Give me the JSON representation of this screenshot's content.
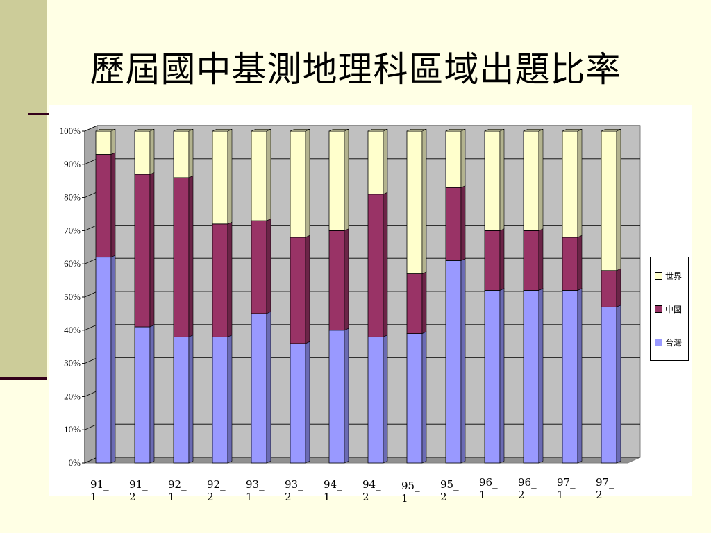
{
  "slide": {
    "title": "歷屆國中基測地理科區域出題比率"
  },
  "colors": {
    "background": "#FFFFE5",
    "accent_bar": "#CCCC99",
    "accent_line": "#33001A",
    "plot_area": "#C0C0C0"
  },
  "chart_data": {
    "type": "bar",
    "stacked": true,
    "normalized_percent": true,
    "three_d": true,
    "categories": [
      "91_1",
      "91_2",
      "92_1",
      "92_2",
      "93_1",
      "93_2",
      "94_1",
      "94_2",
      "95_1",
      "95_2",
      "96_1",
      "96_2",
      "97_1",
      "97_2"
    ],
    "series": [
      {
        "name": "台灣",
        "color": "#9999FF",
        "values": [
          62,
          41,
          38,
          38,
          45,
          36,
          40,
          38,
          39,
          61,
          52,
          52,
          52,
          47
        ]
      },
      {
        "name": "中國",
        "color": "#993366",
        "values": [
          31,
          46,
          48,
          34,
          28,
          32,
          30,
          43,
          18,
          22,
          18,
          18,
          16,
          11
        ]
      },
      {
        "name": "世界",
        "color": "#FFFFCC",
        "values": [
          7,
          13,
          14,
          28,
          27,
          32,
          30,
          19,
          43,
          17,
          30,
          30,
          32,
          42
        ]
      }
    ],
    "y_ticks": [
      "0%",
      "10%",
      "20%",
      "30%",
      "40%",
      "50%",
      "60%",
      "70%",
      "80%",
      "90%",
      "100%"
    ],
    "ylim": [
      0,
      100
    ],
    "grid": true,
    "legend_position": "right"
  }
}
